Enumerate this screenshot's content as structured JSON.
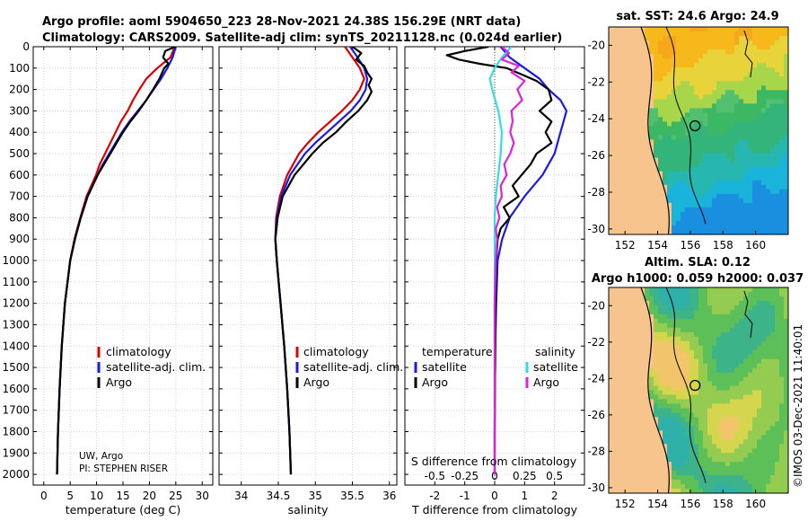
{
  "title_line1": "Argo profile: aoml 5904650_223 28-Nov-2021 24.38S 156.29E (NRT data)",
  "title_line2": "Climatology: CARS2009. Satellite-adj clim: synTS_20211128.nc (0.024d earlier)",
  "credit_line1": "UW, Argo",
  "credit_line2": "PI: STEPHEN RISER",
  "imos_stamp": "©IMOS 03-Dec-2021 11:40:01",
  "colors": {
    "climatology": "#dd0000",
    "satellite_adj": "#1a1ae6",
    "argo": "#000000",
    "sat_salinity": "#33dddd",
    "argo_salinity": "#dd22dd"
  },
  "chart_data": [
    {
      "type": "line",
      "id": "temperature",
      "xlabel": "temperature (deg C)",
      "ylabel": "",
      "xlim": [
        -2,
        32
      ],
      "ylim": [
        2050,
        0
      ],
      "xticks": [
        "0",
        "5",
        "10",
        "15",
        "20",
        "25",
        "30"
      ],
      "yticks": [
        "0",
        "100",
        "200",
        "300",
        "400",
        "500",
        "600",
        "700",
        "800",
        "900",
        "1000",
        "1100",
        "1200",
        "1300",
        "1400",
        "1500",
        "1600",
        "1700",
        "1800",
        "1900",
        "2000"
      ],
      "grid": true,
      "legend": [
        "climatology",
        "satellite-adj. clim.",
        "Argo"
      ],
      "series": [
        {
          "name": "climatology",
          "depth": [
            0,
            50,
            100,
            150,
            200,
            250,
            300,
            350,
            400,
            450,
            500,
            550,
            600,
            700,
            800,
            900,
            1000,
            1200,
            1400,
            1600,
            1800,
            2000
          ],
          "values": [
            24.8,
            24.0,
            21.5,
            19.4,
            18.1,
            16.9,
            15.9,
            14.6,
            13.6,
            12.6,
            11.6,
            10.6,
            9.9,
            8.1,
            6.9,
            5.8,
            5.0,
            4.0,
            3.4,
            3.0,
            2.7,
            2.5
          ]
        },
        {
          "name": "satellite-adj. clim.",
          "depth": [
            0,
            50,
            100,
            150,
            200,
            250,
            300,
            350,
            400,
            450,
            500,
            550,
            600,
            700,
            800,
            900,
            1000,
            1200,
            1400,
            1600,
            1800,
            2000
          ],
          "values": [
            25.0,
            24.4,
            23.4,
            22.2,
            20.8,
            19.4,
            17.8,
            16.2,
            14.8,
            13.6,
            12.4,
            11.2,
            10.2,
            8.3,
            7.0,
            5.9,
            5.0,
            4.0,
            3.4,
            3.0,
            2.7,
            2.5
          ]
        },
        {
          "name": "Argo",
          "depth": [
            0,
            20,
            50,
            80,
            100,
            150,
            200,
            250,
            300,
            350,
            400,
            450,
            500,
            550,
            600,
            700,
            800,
            900,
            1000,
            1200,
            1400,
            1600,
            1800,
            2000
          ],
          "values": [
            24.9,
            23.0,
            22.6,
            23.6,
            22.8,
            21.9,
            20.7,
            19.4,
            18.0,
            16.4,
            15.0,
            13.8,
            12.6,
            11.4,
            10.2,
            8.3,
            7.0,
            5.9,
            5.0,
            4.0,
            3.4,
            3.0,
            2.7,
            2.5
          ]
        }
      ]
    },
    {
      "type": "line",
      "id": "salinity",
      "xlabel": "salinity",
      "xlim": [
        33.7,
        36.1
      ],
      "ylim": [
        2050,
        0
      ],
      "xticks": [
        "34",
        "34.5",
        "35",
        "35.5",
        "36"
      ],
      "grid": true,
      "legend": [
        "climatology",
        "satellite-adj. clim.",
        "Argo"
      ],
      "series": [
        {
          "name": "climatology",
          "depth": [
            0,
            50,
            100,
            150,
            200,
            250,
            300,
            350,
            400,
            450,
            500,
            600,
            700,
            800,
            900,
            1000,
            1200,
            1400,
            1600,
            1800,
            2000
          ],
          "values": [
            35.4,
            35.5,
            35.6,
            35.66,
            35.6,
            35.5,
            35.36,
            35.2,
            35.04,
            34.9,
            34.78,
            34.62,
            34.52,
            34.47,
            34.46,
            34.48,
            34.53,
            34.58,
            34.62,
            34.65,
            34.67
          ]
        },
        {
          "name": "satellite-adj. clim.",
          "depth": [
            0,
            50,
            100,
            150,
            200,
            250,
            300,
            350,
            400,
            450,
            500,
            600,
            700,
            800,
            900,
            1000,
            1200,
            1400,
            1600,
            1800,
            2000
          ],
          "values": [
            35.47,
            35.57,
            35.66,
            35.7,
            35.68,
            35.6,
            35.48,
            35.32,
            35.16,
            35.0,
            34.86,
            34.66,
            34.54,
            34.48,
            34.46,
            34.48,
            34.53,
            34.58,
            34.62,
            34.65,
            34.67
          ]
        },
        {
          "name": "Argo",
          "depth": [
            0,
            30,
            60,
            90,
            120,
            150,
            180,
            210,
            250,
            300,
            350,
            400,
            450,
            500,
            600,
            700,
            800,
            900,
            1000,
            1200,
            1400,
            1600,
            1800,
            2000
          ],
          "values": [
            35.5,
            35.62,
            35.55,
            35.66,
            35.7,
            35.76,
            35.72,
            35.76,
            35.7,
            35.58,
            35.42,
            35.28,
            35.1,
            34.96,
            34.72,
            34.56,
            34.49,
            34.46,
            34.48,
            34.53,
            34.58,
            34.62,
            34.65,
            34.67
          ]
        }
      ]
    },
    {
      "type": "line",
      "id": "difference",
      "xlabel": "T difference from climatology",
      "xlabel_top": "S difference from climatology",
      "xlim": [
        -3,
        3
      ],
      "ylim": [
        2050,
        0
      ],
      "xticks": [
        "-2",
        "-1",
        "0",
        "1",
        "2"
      ],
      "xticks_top": [
        "-0.5",
        "-0.25",
        "0",
        "0.25",
        "0.5"
      ],
      "grid": true,
      "legend_temperature_title": "temperature",
      "legend_salinity_title": "salinity",
      "legend_temperature": [
        "satellite",
        "Argo"
      ],
      "legend_salinity": [
        "satellite",
        "Argo"
      ],
      "series": [
        {
          "name": "T satellite",
          "depth": [
            0,
            50,
            100,
            150,
            200,
            250,
            300,
            350,
            400,
            450,
            500,
            550,
            600,
            700,
            800,
            900,
            1000,
            1200,
            1400,
            1600,
            1800,
            2000
          ],
          "values": [
            0.2,
            0.5,
            1.0,
            1.5,
            1.8,
            2.2,
            2.4,
            2.3,
            2.2,
            2.1,
            2.0,
            1.8,
            1.6,
            1.0,
            0.5,
            0.25,
            0.1,
            0.05,
            0.02,
            0.01,
            0.0,
            0.0
          ]
        },
        {
          "name": "T Argo",
          "depth": [
            0,
            20,
            40,
            60,
            80,
            100,
            130,
            160,
            200,
            250,
            300,
            350,
            400,
            450,
            500,
            550,
            600,
            650,
            700,
            750,
            800,
            850,
            900,
            1000,
            1200,
            1400,
            1600,
            1800,
            2000
          ],
          "values": [
            -0.2,
            -1.0,
            -1.6,
            -1.2,
            -0.5,
            0.4,
            0.9,
            1.4,
            1.8,
            1.9,
            1.5,
            1.9,
            1.7,
            1.9,
            1.4,
            1.2,
            0.9,
            0.6,
            0.8,
            0.3,
            0.5,
            0.2,
            0.1,
            0.05,
            0.03,
            0.02,
            0.01,
            0.0,
            0.0
          ]
        },
        {
          "name": "S satellite",
          "depth": [
            0,
            50,
            100,
            150,
            200,
            300,
            400,
            500,
            600,
            700,
            800,
            900,
            1000,
            1200,
            1400,
            1600,
            1800,
            2000
          ],
          "values": [
            0.14,
            0.06,
            0.0,
            -0.04,
            -0.02,
            0.03,
            0.06,
            0.05,
            0.03,
            0.01,
            0.0,
            0.0,
            0.0,
            0.0,
            0.0,
            0.0,
            0.0,
            0.0
          ]
        },
        {
          "name": "S Argo",
          "depth": [
            0,
            30,
            60,
            90,
            120,
            160,
            200,
            250,
            300,
            350,
            400,
            450,
            500,
            550,
            600,
            650,
            700,
            750,
            800,
            850,
            900,
            1000,
            1200,
            1400,
            1600,
            1800,
            2000
          ],
          "values": [
            0.06,
            0.12,
            0.06,
            0.2,
            0.14,
            0.25,
            0.19,
            0.23,
            0.14,
            0.15,
            0.13,
            0.16,
            0.13,
            0.08,
            0.1,
            0.05,
            0.06,
            0.02,
            0.04,
            0.01,
            0.02,
            0.01,
            0.0,
            0.0,
            0.0,
            0.0,
            0.0
          ]
        }
      ]
    },
    {
      "type": "heatmap",
      "id": "sst_map",
      "title": "sat. SST: 24.6 Argo: 24.9",
      "xlim": [
        151,
        162
      ],
      "ylim": [
        -30.3,
        -19
      ],
      "xticks": [
        "152",
        "154",
        "156",
        "158",
        "160"
      ],
      "yticks": [
        "-20",
        "-22",
        "-24",
        "-26",
        "-28",
        "-30"
      ],
      "float_position": {
        "lon": 156.29,
        "lat": -24.38
      }
    },
    {
      "type": "heatmap",
      "id": "sla_map",
      "title": "Altim. SLA: 0.12",
      "subtitle": "Argo h1000: 0.059 h2000: 0.037",
      "xlim": [
        151,
        162
      ],
      "ylim": [
        -30.3,
        -19
      ],
      "xticks": [
        "152",
        "154",
        "156",
        "158",
        "160"
      ],
      "yticks": [
        "-20",
        "-22",
        "-24",
        "-26",
        "-28",
        "-30"
      ],
      "float_position": {
        "lon": 156.29,
        "lat": -24.38
      }
    }
  ]
}
